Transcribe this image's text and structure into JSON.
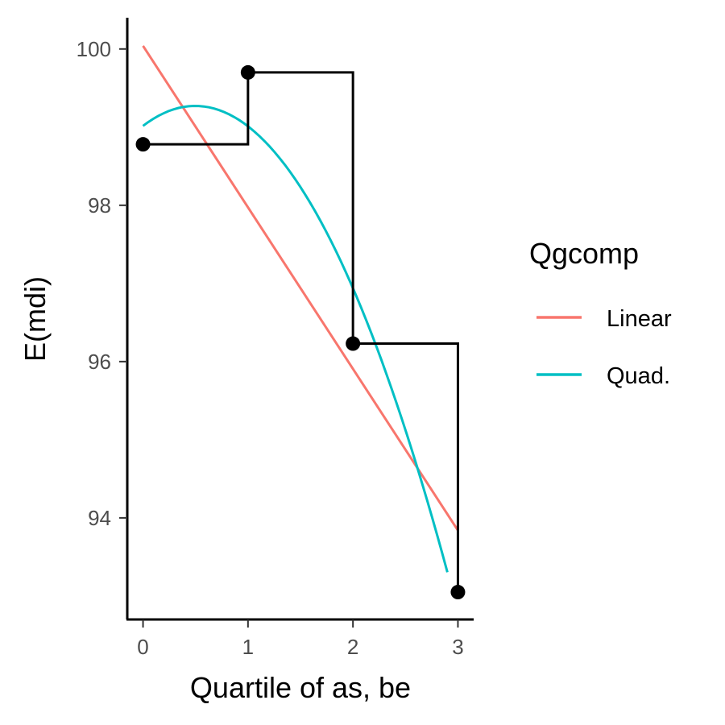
{
  "chart_data": {
    "type": "line",
    "xlabel": "Quartile of as, be",
    "ylabel": "E(mdi)",
    "xlim": [
      -0.15,
      3.15
    ],
    "ylim": [
      92.7,
      100.4
    ],
    "x_ticks": [
      0,
      1,
      2,
      3
    ],
    "y_ticks": [
      94,
      96,
      98,
      100
    ],
    "grid": false,
    "legend": {
      "title": "Qgcomp",
      "placement": "right",
      "entries": [
        {
          "label": "Linear",
          "color": "#F8766D"
        },
        {
          "label": "Quad.",
          "color": "#00BFC4"
        }
      ]
    },
    "points": {
      "x": [
        0,
        1,
        2,
        3
      ],
      "y": [
        98.78,
        99.7,
        96.23,
        93.05
      ],
      "color": "#000000"
    },
    "step_line": {
      "x": [
        0,
        1,
        2,
        3
      ],
      "y": [
        98.78,
        99.7,
        96.23,
        93.05
      ],
      "color": "#000000"
    },
    "series": [
      {
        "name": "Linear",
        "color": "#F8766D",
        "type": "linear",
        "x_range": [
          0,
          3
        ],
        "y_at_start": 100.04,
        "y_at_end": 93.84
      },
      {
        "name": "Quad.",
        "color": "#00BFC4",
        "type": "quadratic",
        "x_range": [
          0,
          2.9
        ],
        "y_points": [
          [
            0,
            99.02
          ],
          [
            0.5,
            99.27
          ],
          [
            1,
            99.0
          ],
          [
            2,
            96.95
          ],
          [
            2.9,
            93.3
          ]
        ]
      }
    ]
  }
}
